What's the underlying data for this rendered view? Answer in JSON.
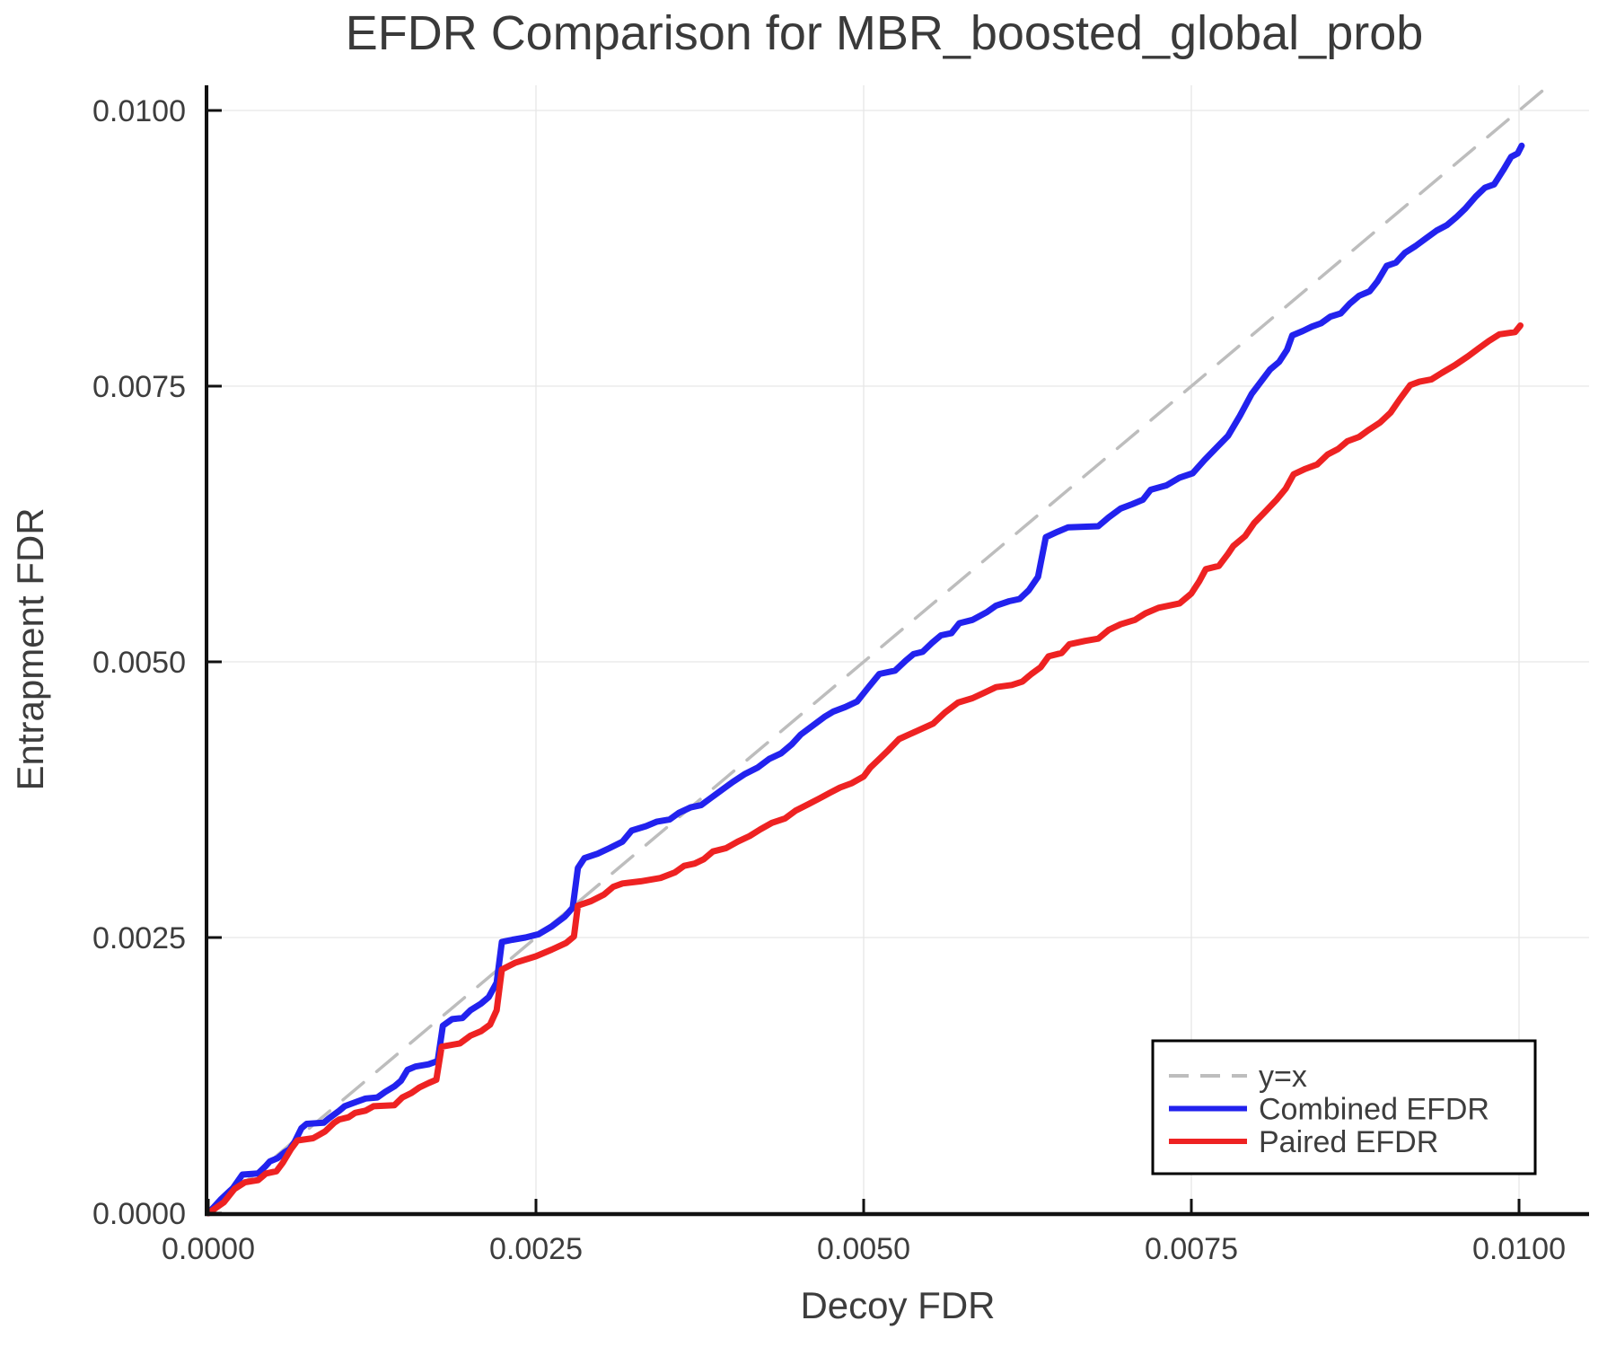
{
  "title": "EFDR Comparison for MBR_boosted_global_prob",
  "axes": {
    "x": {
      "label": "Decoy FDR",
      "ticks": [
        0.0,
        0.0025,
        0.005,
        0.0075,
        0.01
      ],
      "tick_labels": [
        "0.0000",
        "0.0025",
        "0.0050",
        "0.0075",
        "0.0100"
      ]
    },
    "y": {
      "label": "Entrapment FDR",
      "ticks": [
        0.0,
        0.0025,
        0.005,
        0.0075,
        0.01
      ],
      "tick_labels": [
        "0.0000",
        "0.0025",
        "0.0050",
        "0.0075",
        "0.0100"
      ]
    }
  },
  "legend": {
    "items": [
      {
        "label": "y=x",
        "color": "#bdbdbd",
        "dashed": true
      },
      {
        "label": "Combined EFDR",
        "color": "#2222ee",
        "dashed": false
      },
      {
        "label": "Paired EFDR",
        "color": "#ee2222",
        "dashed": false
      }
    ]
  },
  "colors": {
    "grid": "#e6e6e6",
    "spine": "#111111",
    "identity": "#bdbdbd",
    "combined": "#2222ee",
    "paired": "#ee2222",
    "text": "#3d3d3d",
    "background": "#ffffff"
  },
  "chart_data": {
    "type": "line",
    "title": "EFDR Comparison for MBR_boosted_global_prob",
    "xlabel": "Decoy FDR",
    "ylabel": "Entrapment FDR",
    "xlim": [
      0.0,
      0.0105
    ],
    "ylim": [
      0.0,
      0.0102
    ],
    "grid": true,
    "legend_position": "bottom-right",
    "series": [
      {
        "name": "y=x",
        "style": "dashed",
        "color": "#bdbdbd",
        "points": [
          [
            0.0,
            0.0
          ],
          [
            0.01023,
            0.01023
          ]
        ]
      },
      {
        "name": "Combined EFDR",
        "style": "solid",
        "color": "#2222ee",
        "points": [
          [
            0.0,
            0.0
          ],
          [
            0.0001,
            0.00013
          ],
          [
            0.00019,
            0.00023
          ],
          [
            0.00026,
            0.00035
          ],
          [
            0.00038,
            0.00036
          ],
          [
            0.00044,
            0.00043
          ],
          [
            0.00047,
            0.00047
          ],
          [
            0.00053,
            0.0005
          ],
          [
            0.00058,
            0.00055
          ],
          [
            0.00062,
            0.00058
          ],
          [
            0.00066,
            0.00065
          ],
          [
            0.00071,
            0.00077
          ],
          [
            0.00075,
            0.00081
          ],
          [
            0.00088,
            0.00082
          ],
          [
            0.00092,
            0.00086
          ],
          [
            0.001,
            0.00093
          ],
          [
            0.00104,
            0.00097
          ],
          [
            0.00113,
            0.00101
          ],
          [
            0.0012,
            0.00104
          ],
          [
            0.00129,
            0.00105
          ],
          [
            0.00135,
            0.0011
          ],
          [
            0.00142,
            0.00115
          ],
          [
            0.00147,
            0.0012
          ],
          [
            0.00152,
            0.0013
          ],
          [
            0.00158,
            0.00133
          ],
          [
            0.00168,
            0.00135
          ],
          [
            0.00175,
            0.00138
          ],
          [
            0.00179,
            0.0017
          ],
          [
            0.00186,
            0.00176
          ],
          [
            0.00194,
            0.00177
          ],
          [
            0.002,
            0.00184
          ],
          [
            0.00208,
            0.0019
          ],
          [
            0.00214,
            0.00196
          ],
          [
            0.0022,
            0.00209
          ],
          [
            0.00224,
            0.00246
          ],
          [
            0.00232,
            0.00248
          ],
          [
            0.00242,
            0.0025
          ],
          [
            0.00252,
            0.00253
          ],
          [
            0.00262,
            0.0026
          ],
          [
            0.00272,
            0.00269
          ],
          [
            0.00278,
            0.00277
          ],
          [
            0.00282,
            0.00313
          ],
          [
            0.00287,
            0.00322
          ],
          [
            0.00297,
            0.00326
          ],
          [
            0.00306,
            0.00331
          ],
          [
            0.00316,
            0.00337
          ],
          [
            0.00323,
            0.00347
          ],
          [
            0.00334,
            0.00351
          ],
          [
            0.00342,
            0.00355
          ],
          [
            0.00352,
            0.00357
          ],
          [
            0.00359,
            0.00363
          ],
          [
            0.00368,
            0.00368
          ],
          [
            0.00376,
            0.0037
          ],
          [
            0.00384,
            0.00377
          ],
          [
            0.00392,
            0.00384
          ],
          [
            0.004,
            0.00391
          ],
          [
            0.00409,
            0.00398
          ],
          [
            0.00419,
            0.00404
          ],
          [
            0.00428,
            0.00412
          ],
          [
            0.00437,
            0.00417
          ],
          [
            0.00445,
            0.00425
          ],
          [
            0.00452,
            0.00434
          ],
          [
            0.00461,
            0.00442
          ],
          [
            0.0047,
            0.0045
          ],
          [
            0.00477,
            0.00455
          ],
          [
            0.00486,
            0.00459
          ],
          [
            0.00495,
            0.00464
          ],
          [
            0.00503,
            0.00476
          ],
          [
            0.00512,
            0.00489
          ],
          [
            0.00524,
            0.00492
          ],
          [
            0.00532,
            0.00501
          ],
          [
            0.00538,
            0.00507
          ],
          [
            0.00545,
            0.00509
          ],
          [
            0.00552,
            0.00517
          ],
          [
            0.00559,
            0.00524
          ],
          [
            0.00567,
            0.00526
          ],
          [
            0.00573,
            0.00535
          ],
          [
            0.00583,
            0.00538
          ],
          [
            0.00594,
            0.00545
          ],
          [
            0.00601,
            0.00551
          ],
          [
            0.00611,
            0.00555
          ],
          [
            0.00619,
            0.00557
          ],
          [
            0.00626,
            0.00565
          ],
          [
            0.00633,
            0.00577
          ],
          [
            0.00639,
            0.00613
          ],
          [
            0.00648,
            0.00618
          ],
          [
            0.00656,
            0.00622
          ],
          [
            0.00679,
            0.00623
          ],
          [
            0.00687,
            0.00631
          ],
          [
            0.00696,
            0.00639
          ],
          [
            0.00705,
            0.00643
          ],
          [
            0.00713,
            0.00647
          ],
          [
            0.00719,
            0.00656
          ],
          [
            0.00731,
            0.0066
          ],
          [
            0.00741,
            0.00667
          ],
          [
            0.00751,
            0.00671
          ],
          [
            0.0076,
            0.00683
          ],
          [
            0.00769,
            0.00694
          ],
          [
            0.00778,
            0.00705
          ],
          [
            0.00787,
            0.00723
          ],
          [
            0.00796,
            0.00743
          ],
          [
            0.00803,
            0.00754
          ],
          [
            0.0081,
            0.00765
          ],
          [
            0.00817,
            0.00772
          ],
          [
            0.00823,
            0.00783
          ],
          [
            0.00827,
            0.00796
          ],
          [
            0.00835,
            0.008
          ],
          [
            0.00842,
            0.00804
          ],
          [
            0.00849,
            0.00807
          ],
          [
            0.00856,
            0.00813
          ],
          [
            0.00864,
            0.00816
          ],
          [
            0.00871,
            0.00825
          ],
          [
            0.00878,
            0.00832
          ],
          [
            0.00886,
            0.00836
          ],
          [
            0.00892,
            0.00845
          ],
          [
            0.00899,
            0.00859
          ],
          [
            0.00906,
            0.00862
          ],
          [
            0.00913,
            0.00871
          ],
          [
            0.00921,
            0.00877
          ],
          [
            0.00929,
            0.00884
          ],
          [
            0.00937,
            0.00891
          ],
          [
            0.00945,
            0.00896
          ],
          [
            0.00952,
            0.00903
          ],
          [
            0.00959,
            0.00911
          ],
          [
            0.00967,
            0.00922
          ],
          [
            0.00974,
            0.0093
          ],
          [
            0.00981,
            0.00933
          ],
          [
            0.00988,
            0.00946
          ],
          [
            0.00994,
            0.00958
          ],
          [
            0.00999,
            0.00961
          ],
          [
            0.01002,
            0.00968
          ]
        ]
      },
      {
        "name": "Paired EFDR",
        "style": "solid",
        "color": "#ee2222",
        "points": [
          [
            0.0,
            0.0
          ],
          [
            0.00012,
            0.0001
          ],
          [
            0.0002,
            0.00022
          ],
          [
            0.00028,
            0.00028
          ],
          [
            0.00038,
            0.0003
          ],
          [
            0.00044,
            0.00036
          ],
          [
            0.00052,
            0.00038
          ],
          [
            0.00057,
            0.00046
          ],
          [
            0.00063,
            0.00058
          ],
          [
            0.00068,
            0.00066
          ],
          [
            0.0008,
            0.00068
          ],
          [
            0.00089,
            0.00074
          ],
          [
            0.00096,
            0.00082
          ],
          [
            0.001,
            0.00085
          ],
          [
            0.00107,
            0.00087
          ],
          [
            0.00112,
            0.00091
          ],
          [
            0.0012,
            0.00093
          ],
          [
            0.00126,
            0.00097
          ],
          [
            0.00142,
            0.00098
          ],
          [
            0.00148,
            0.00105
          ],
          [
            0.00155,
            0.00109
          ],
          [
            0.00161,
            0.00114
          ],
          [
            0.00168,
            0.00118
          ],
          [
            0.00174,
            0.00121
          ],
          [
            0.00178,
            0.00151
          ],
          [
            0.00192,
            0.00154
          ],
          [
            0.002,
            0.00161
          ],
          [
            0.00208,
            0.00165
          ],
          [
            0.00215,
            0.00171
          ],
          [
            0.0022,
            0.00184
          ],
          [
            0.00224,
            0.00221
          ],
          [
            0.00234,
            0.00227
          ],
          [
            0.0025,
            0.00233
          ],
          [
            0.00262,
            0.00239
          ],
          [
            0.00273,
            0.00245
          ],
          [
            0.00279,
            0.00251
          ],
          [
            0.00282,
            0.00279
          ],
          [
            0.00292,
            0.00283
          ],
          [
            0.00302,
            0.00289
          ],
          [
            0.00309,
            0.00296
          ],
          [
            0.00316,
            0.00299
          ],
          [
            0.0033,
            0.00301
          ],
          [
            0.00345,
            0.00304
          ],
          [
            0.00356,
            0.00309
          ],
          [
            0.00363,
            0.00315
          ],
          [
            0.00371,
            0.00317
          ],
          [
            0.00378,
            0.00321
          ],
          [
            0.00385,
            0.00328
          ],
          [
            0.00395,
            0.00331
          ],
          [
            0.00404,
            0.00337
          ],
          [
            0.00413,
            0.00342
          ],
          [
            0.00421,
            0.00348
          ],
          [
            0.0043,
            0.00354
          ],
          [
            0.0044,
            0.00358
          ],
          [
            0.00448,
            0.00365
          ],
          [
            0.00458,
            0.00371
          ],
          [
            0.00466,
            0.00376
          ],
          [
            0.00474,
            0.00381
          ],
          [
            0.00482,
            0.00386
          ],
          [
            0.00491,
            0.0039
          ],
          [
            0.005,
            0.00396
          ],
          [
            0.00505,
            0.00404
          ],
          [
            0.00512,
            0.00412
          ],
          [
            0.00519,
            0.0042
          ],
          [
            0.00527,
            0.0043
          ],
          [
            0.0054,
            0.00437
          ],
          [
            0.00553,
            0.00444
          ],
          [
            0.00562,
            0.00454
          ],
          [
            0.00572,
            0.00463
          ],
          [
            0.00583,
            0.00467
          ],
          [
            0.00592,
            0.00472
          ],
          [
            0.00601,
            0.00477
          ],
          [
            0.00613,
            0.00479
          ],
          [
            0.00621,
            0.00482
          ],
          [
            0.00628,
            0.00489
          ],
          [
            0.00635,
            0.00495
          ],
          [
            0.00641,
            0.00505
          ],
          [
            0.00651,
            0.00508
          ],
          [
            0.00657,
            0.00516
          ],
          [
            0.00669,
            0.00519
          ],
          [
            0.00679,
            0.00521
          ],
          [
            0.00687,
            0.00529
          ],
          [
            0.00696,
            0.00534
          ],
          [
            0.00707,
            0.00538
          ],
          [
            0.00715,
            0.00544
          ],
          [
            0.00725,
            0.00549
          ],
          [
            0.00741,
            0.00553
          ],
          [
            0.0075,
            0.00562
          ],
          [
            0.00756,
            0.00573
          ],
          [
            0.00761,
            0.00584
          ],
          [
            0.00771,
            0.00587
          ],
          [
            0.00778,
            0.00598
          ],
          [
            0.00782,
            0.00605
          ],
          [
            0.00791,
            0.00614
          ],
          [
            0.00798,
            0.00626
          ],
          [
            0.00807,
            0.00637
          ],
          [
            0.00815,
            0.00647
          ],
          [
            0.00822,
            0.00657
          ],
          [
            0.00828,
            0.0067
          ],
          [
            0.00837,
            0.00675
          ],
          [
            0.00846,
            0.00679
          ],
          [
            0.00854,
            0.00688
          ],
          [
            0.00862,
            0.00693
          ],
          [
            0.00869,
            0.007
          ],
          [
            0.00878,
            0.00704
          ],
          [
            0.00885,
            0.0071
          ],
          [
            0.00894,
            0.00717
          ],
          [
            0.00902,
            0.00726
          ],
          [
            0.00909,
            0.00738
          ],
          [
            0.00917,
            0.00751
          ],
          [
            0.00924,
            0.00754
          ],
          [
            0.00933,
            0.00756
          ],
          [
            0.00941,
            0.00762
          ],
          [
            0.00951,
            0.00769
          ],
          [
            0.00961,
            0.00777
          ],
          [
            0.00969,
            0.00784
          ],
          [
            0.00977,
            0.00791
          ],
          [
            0.00985,
            0.00797
          ],
          [
            0.00997,
            0.00799
          ],
          [
            0.01001,
            0.00805
          ]
        ]
      }
    ]
  }
}
